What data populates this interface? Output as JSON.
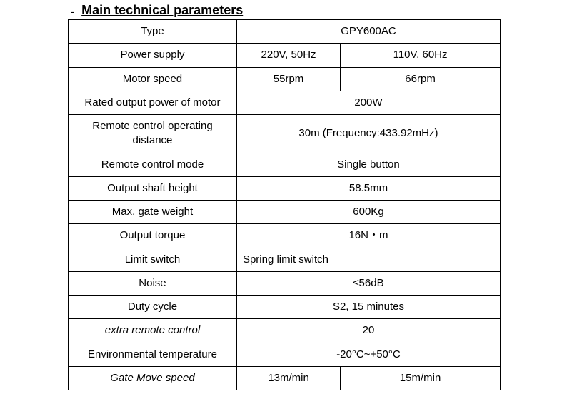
{
  "title": "Main technical parameters",
  "rows": {
    "type": {
      "label": "Type",
      "v1": "GPY600AC"
    },
    "power_supply": {
      "label": "Power supply",
      "v1": "220V, 50Hz",
      "v2": "110V, 60Hz"
    },
    "motor_speed": {
      "label": "Motor speed",
      "v1": "55rpm",
      "v2": "66rpm"
    },
    "rated_power": {
      "label": "Rated output power of motor",
      "v1": "200W"
    },
    "remote_distance": {
      "label": "Remote control operating distance",
      "v1": "30m (Frequency:433.92mHz)"
    },
    "remote_mode": {
      "label": "Remote control mode",
      "v1": "Single button"
    },
    "shaft_height": {
      "label": "Output shaft height",
      "v1": "58.5mm"
    },
    "max_weight": {
      "label": "Max. gate weight",
      "v1": "600Kg"
    },
    "output_torque": {
      "label": "Output torque",
      "v1": "16N・m"
    },
    "limit_switch": {
      "label": "Limit switch",
      "v1": "Spring limit switch"
    },
    "noise": {
      "label": "Noise",
      "v1": "≤56dB"
    },
    "duty_cycle": {
      "label": "Duty cycle",
      "v1": "S2, 15 minutes"
    },
    "extra_remote": {
      "label": "extra remote control",
      "v1": "20"
    },
    "env_temp": {
      "label": "Environmental temperature",
      "v1": "-20°C~+50°C"
    },
    "gate_speed": {
      "label": "Gate Move speed",
      "v1": "13m/min",
      "v2": "15m/min"
    }
  },
  "style": {
    "border_color": "#000000",
    "background_color": "#ffffff",
    "text_color": "#000000",
    "title_fontsize": 18,
    "cell_fontsize": 15,
    "font_family": "Arial"
  }
}
